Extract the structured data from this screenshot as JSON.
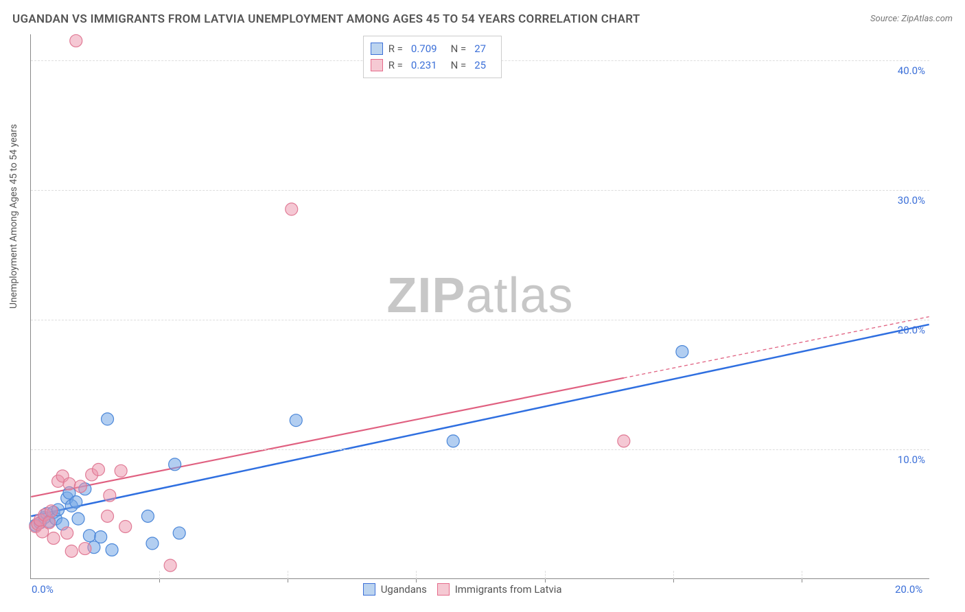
{
  "chart": {
    "type": "scatter",
    "title": "UGANDAN VS IMMIGRANTS FROM LATVIA UNEMPLOYMENT AMONG AGES 45 TO 54 YEARS CORRELATION CHART",
    "source": "Source: ZipAtlas.com",
    "ylabel": "Unemployment Among Ages 45 to 54 years",
    "watermark_bold": "ZIP",
    "watermark_rest": "atlas",
    "background_color": "#ffffff",
    "grid_color": "#dddddd",
    "axis_color": "#888888",
    "title_color": "#555555",
    "title_fontsize": 17,
    "label_fontsize": 14,
    "tick_fontsize": 15,
    "tick_color": "#3b6fd8",
    "xlim": [
      0,
      20
    ],
    "ylim": [
      0,
      42
    ],
    "xticks": [
      {
        "v": 0,
        "label": "0.0%"
      },
      {
        "v": 20,
        "label": "20.0%"
      }
    ],
    "xticks_minor": [
      2.86,
      5.71,
      8.57,
      11.43,
      14.29,
      17.14
    ],
    "yticks": [
      {
        "v": 10,
        "label": "10.0%"
      },
      {
        "v": 20,
        "label": "20.0%"
      },
      {
        "v": 30,
        "label": "30.0%"
      },
      {
        "v": 40,
        "label": "40.0%"
      }
    ],
    "legend_top": {
      "rows": [
        {
          "swatch_fill": "#bcd4ef",
          "swatch_stroke": "#3b6fd8",
          "r_label": "R =",
          "r_value": "0.709",
          "n_label": "N =",
          "n_value": "27"
        },
        {
          "swatch_fill": "#f5c9d3",
          "swatch_stroke": "#e56b8b",
          "r_label": "R =",
          "r_value": " 0.231",
          "n_label": "N =",
          "n_value": "25"
        }
      ]
    },
    "legend_bottom": [
      {
        "swatch_fill": "#bcd4ef",
        "swatch_stroke": "#3b6fd8",
        "label": "Ugandans"
      },
      {
        "swatch_fill": "#f5c9d3",
        "swatch_stroke": "#e56b8b",
        "label": "Immigrants from Latvia"
      }
    ],
    "series": [
      {
        "name": "Ugandans",
        "color_fill": "rgba(114,166,229,0.55)",
        "color_stroke": "#4a86d8",
        "marker_radius": 9,
        "trend": {
          "x1": 0,
          "y1": 4.8,
          "x2": 20,
          "y2": 19.6,
          "extrap_from_x": null,
          "stroke": "#2f6fe0",
          "width": 2.5
        },
        "points": [
          [
            0.1,
            4.1
          ],
          [
            0.2,
            4.3
          ],
          [
            0.3,
            4.7
          ],
          [
            0.35,
            5.0
          ],
          [
            0.4,
            4.4
          ],
          [
            0.5,
            5.1
          ],
          [
            0.55,
            4.6
          ],
          [
            0.6,
            5.3
          ],
          [
            0.7,
            4.2
          ],
          [
            0.8,
            6.2
          ],
          [
            0.85,
            6.6
          ],
          [
            0.9,
            5.6
          ],
          [
            1.0,
            5.9
          ],
          [
            1.05,
            4.6
          ],
          [
            1.2,
            6.9
          ],
          [
            1.3,
            3.3
          ],
          [
            1.4,
            2.4
          ],
          [
            1.55,
            3.2
          ],
          [
            1.7,
            12.3
          ],
          [
            1.8,
            2.2
          ],
          [
            2.6,
            4.8
          ],
          [
            2.7,
            2.7
          ],
          [
            3.2,
            8.8
          ],
          [
            3.3,
            3.5
          ],
          [
            5.9,
            12.2
          ],
          [
            9.4,
            10.6
          ],
          [
            14.5,
            17.5
          ]
        ]
      },
      {
        "name": "Immigrants from Latvia",
        "color_fill": "rgba(236,145,170,0.5)",
        "color_stroke": "#e07a95",
        "marker_radius": 9,
        "trend": {
          "x1": 0,
          "y1": 6.3,
          "x2": 20,
          "y2": 20.2,
          "extrap_from_x": 13.2,
          "stroke": "#e06080",
          "width": 2.2
        },
        "points": [
          [
            0.1,
            4.0
          ],
          [
            0.15,
            4.2
          ],
          [
            0.2,
            4.5
          ],
          [
            0.25,
            3.6
          ],
          [
            0.3,
            4.9
          ],
          [
            0.4,
            4.3
          ],
          [
            0.45,
            5.2
          ],
          [
            0.5,
            3.1
          ],
          [
            0.6,
            7.5
          ],
          [
            0.7,
            7.9
          ],
          [
            0.8,
            3.5
          ],
          [
            0.85,
            7.3
          ],
          [
            0.9,
            2.1
          ],
          [
            1.1,
            7.1
          ],
          [
            1.2,
            2.3
          ],
          [
            1.35,
            8.0
          ],
          [
            1.5,
            8.4
          ],
          [
            1.7,
            4.8
          ],
          [
            1.75,
            6.4
          ],
          [
            2.0,
            8.3
          ],
          [
            2.1,
            4.0
          ],
          [
            3.1,
            1.0
          ],
          [
            5.8,
            28.5
          ],
          [
            13.2,
            10.6
          ],
          [
            1.0,
            41.5
          ]
        ]
      }
    ]
  }
}
